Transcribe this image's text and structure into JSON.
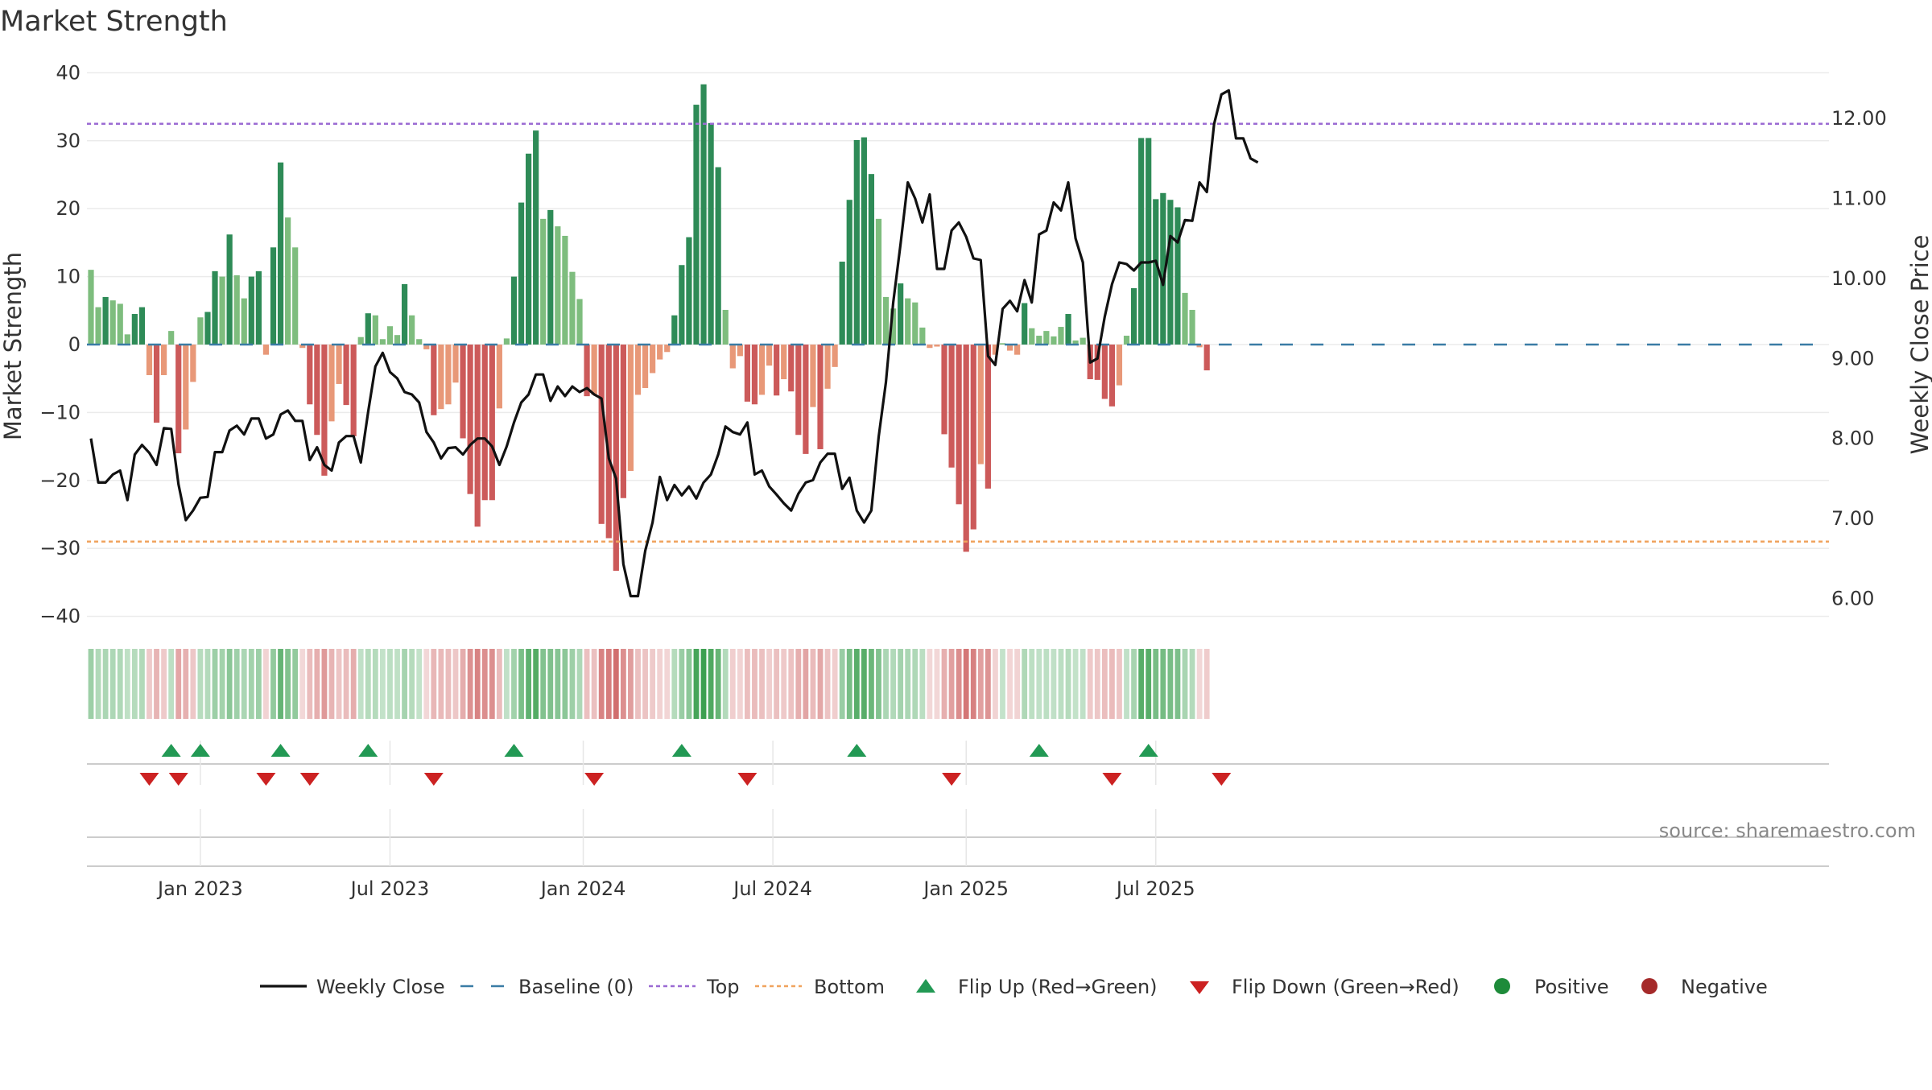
{
  "chart_data": {
    "type": "bar+line",
    "title": "Market Strength",
    "ylabel_left": "Market Strength",
    "ylabel_right": "Weekly Close Price",
    "ylim_left": [
      -40,
      40
    ],
    "yticks_left": [
      40,
      30,
      20,
      10,
      0,
      -10,
      -20,
      -30,
      -40
    ],
    "ytick_labels_left": [
      "40",
      "30",
      "20",
      "10",
      "0",
      "−10",
      "−20",
      "−30",
      "−40"
    ],
    "ylim_right": [
      6.0,
      12.6
    ],
    "yticks_right": [
      12.0,
      11.0,
      10.0,
      9.0,
      8.0,
      7.0,
      6.0
    ],
    "ytick_labels_right": [
      "12.00",
      "11.00",
      "10.00",
      "9.00",
      "8.00",
      "7.00",
      "6.00"
    ],
    "top_line": 32.5,
    "bottom_line": -29,
    "x_ticks": [
      {
        "label": "Jan 2023",
        "week": 15
      },
      {
        "label": "Jul 2023",
        "week": 41
      },
      {
        "label": "Jan 2024",
        "week": 67.5
      },
      {
        "label": "Jul 2024",
        "week": 93.5
      },
      {
        "label": "Jan 2025",
        "week": 120
      },
      {
        "label": "Jul 2025",
        "week": 146
      }
    ],
    "strength": [
      11,
      5.5,
      7,
      6.5,
      6,
      1.5,
      4.5,
      5.5,
      -4.5,
      -11.5,
      -4.5,
      2,
      -16,
      -12.5,
      -5.5,
      4,
      4.8,
      10.8,
      10,
      16.2,
      10.2,
      6.8,
      10,
      10.8,
      -1.5,
      14.3,
      26.8,
      18.7,
      14.3,
      -0.5,
      -8.8,
      -13.3,
      -19.3,
      -11.3,
      -5.8,
      -8.9,
      -13.5,
      1.1,
      4.6,
      4.3,
      0.8,
      2.7,
      1.4,
      8.9,
      4.3,
      0.8,
      -0.7,
      -10.4,
      -9.5,
      -8.8,
      -5.6,
      -13.8,
      -22,
      -26.8,
      -22.9,
      -22.9,
      -9.4,
      0.9,
      10,
      20.9,
      28.1,
      31.5,
      18.5,
      19.8,
      17.4,
      16,
      10.7,
      6.7,
      -7.6,
      -7.4,
      -26.4,
      -28.5,
      -33.3,
      -22.6,
      -18.6,
      -7.4,
      -6.4,
      -4.2,
      -2.2,
      -1.1,
      4.3,
      11.7,
      15.8,
      35.3,
      38.3,
      32.6,
      26.1,
      5.1,
      -3.5,
      -1.7,
      -8.4,
      -8.8,
      -7.4,
      -3.1,
      -7.5,
      -5.1,
      -6.9,
      -13.3,
      -16.1,
      -9.2,
      -15.4,
      -6.5,
      -3.3,
      12.2,
      21.3,
      30.1,
      30.5,
      25.1,
      18.5,
      7,
      5.3,
      9,
      6.8,
      6.2,
      2.5,
      -0.5,
      -0.3,
      -13.2,
      -18.1,
      -23.5,
      -30.5,
      -27.2,
      -17.6,
      -21.2,
      -1.5,
      0.2,
      -0.9,
      -1.5,
      6.1,
      2.4,
      1.3,
      2,
      1.2,
      2.6,
      4.5,
      0.6,
      1,
      -5.1,
      -5.2,
      -8,
      -9.1,
      -6,
      1.3,
      8.3,
      30.4,
      30.4,
      21.4,
      22.3,
      21.3,
      20.2,
      7.6,
      5.1,
      -0.4,
      -3.8
    ],
    "close": [
      8.0,
      7.45,
      7.45,
      7.55,
      7.6,
      7.23,
      7.8,
      7.92,
      7.82,
      7.67,
      8.13,
      8.12,
      7.43,
      6.98,
      7.1,
      7.26,
      7.27,
      7.83,
      7.83,
      8.1,
      8.16,
      8.05,
      8.25,
      8.25,
      8.0,
      8.05,
      8.3,
      8.35,
      8.22,
      8.22,
      7.73,
      7.89,
      7.67,
      7.6,
      7.95,
      8.03,
      8.03,
      7.7,
      8.33,
      8.9,
      9.07,
      8.83,
      8.75,
      8.58,
      8.55,
      8.45,
      8.08,
      7.95,
      7.75,
      7.88,
      7.89,
      7.8,
      7.92,
      8.0,
      8.0,
      7.9,
      7.67,
      7.9,
      8.2,
      8.45,
      8.55,
      8.8,
      8.8,
      8.47,
      8.65,
      8.53,
      8.65,
      8.58,
      8.63,
      8.55,
      8.5,
      7.75,
      7.5,
      6.43,
      6.03,
      6.03,
      6.6,
      6.95,
      7.52,
      7.23,
      7.42,
      7.29,
      7.4,
      7.25,
      7.45,
      7.55,
      7.8,
      8.15,
      8.08,
      8.05,
      8.2,
      7.55,
      7.6,
      7.4,
      7.3,
      7.19,
      7.1,
      7.31,
      7.45,
      7.48,
      7.7,
      7.81,
      7.81,
      7.37,
      7.51,
      7.1,
      6.95,
      7.1,
      8.02,
      8.7,
      9.7,
      10.43,
      11.2,
      11.0,
      10.7,
      11.05,
      10.12,
      10.12,
      10.6,
      10.7,
      10.52,
      10.25,
      10.23,
      9.03,
      8.92,
      9.62,
      9.72,
      9.59,
      9.98,
      9.7,
      10.55,
      10.6,
      10.95,
      10.85,
      11.2,
      10.5,
      10.2,
      8.95,
      9.0,
      9.52,
      9.93,
      10.2,
      10.18,
      10.1,
      10.2,
      10.2,
      10.22,
      9.92,
      10.53,
      10.45,
      10.73,
      10.72,
      11.2,
      11.08,
      11.93,
      12.3,
      12.35,
      11.75,
      11.75,
      11.5,
      11.45
    ],
    "heat_strip": "weekly strength colour band: green shades for positive weeks, red shades for negative weeks",
    "flip_up_weeks": [
      11,
      15,
      26,
      38,
      58,
      81,
      105,
      130,
      145
    ],
    "flip_down_weeks": [
      8,
      12,
      24,
      30,
      47,
      69,
      90,
      118,
      140,
      155
    ],
    "series_colors": {
      "strong_positive": "#2e8b57",
      "weak_positive": "#7ebd7e",
      "strong_negative": "#cc5a5a",
      "weak_negative": "#e89878",
      "close_line": "#111111",
      "baseline": "#3a7ca5",
      "top": "#9b6bd3",
      "bottom": "#f0a35e",
      "flip_up": "#229954",
      "flip_down": "#cc2222",
      "positive_dot": "#1e8b3a",
      "negative_dot": "#a52a2a"
    },
    "legend": [
      {
        "label": "Weekly Close",
        "kind": "line"
      },
      {
        "label": "Baseline (0)",
        "kind": "dash"
      },
      {
        "label": "Top",
        "kind": "dot-purple"
      },
      {
        "label": "Bottom",
        "kind": "dot-orange"
      },
      {
        "label": "Flip Up (Red→Green)",
        "kind": "tri-up"
      },
      {
        "label": "Flip Down (Green→Red)",
        "kind": "tri-down"
      },
      {
        "label": "Positive",
        "kind": "dot-green"
      },
      {
        "label": "Negative",
        "kind": "dot-red"
      }
    ],
    "source": "source: sharemaestro.com"
  }
}
